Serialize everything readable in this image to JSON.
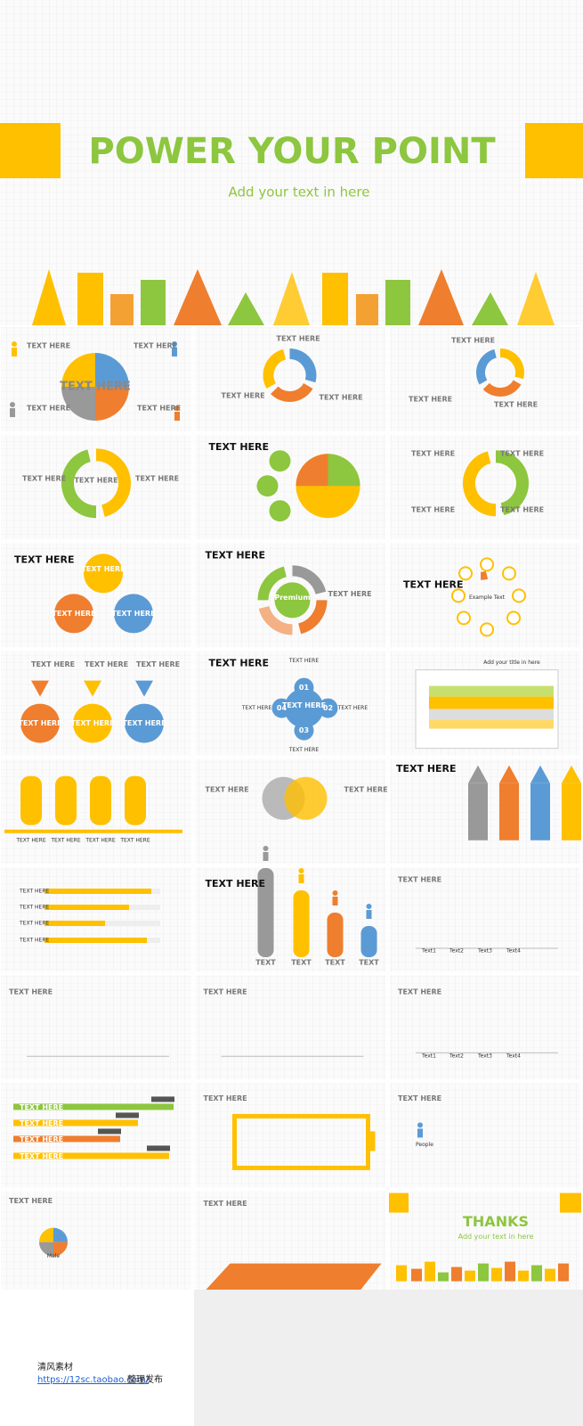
{
  "hero": {
    "title": "POWER YOUR POINT",
    "subtitle": "Add your text in here"
  },
  "slides": [
    {
      "labels": [
        "TEXT HERE",
        "TEXT HERE",
        "TEXT HERE",
        "TEXT HERE",
        "TEXT HERE"
      ]
    },
    {
      "labels": [
        "TEXT HERE",
        "TEXT HERE",
        "TEXT HERE"
      ]
    },
    {
      "labels": [
        "TEXT HERE",
        "TEXT HERE",
        "TEXT HERE"
      ]
    },
    {
      "labels": [
        "TEXT HERE",
        "TEXT HERE",
        "TEXT HERE"
      ]
    },
    {
      "labels": [
        "TEXT HERE"
      ]
    },
    {
      "labels": [
        "TEXT HERE",
        "TEXT HERE",
        "TEXT HERE",
        "TEXT HERE"
      ]
    },
    {
      "labels": [
        "TEXT HERE",
        "TEXT HERE",
        "TEXT HERE",
        "TEXT HERE"
      ]
    },
    {
      "labels": [
        "TEXT HERE",
        "Premium",
        "TEXT HERE"
      ]
    },
    {
      "labels": [
        "TEXT HERE",
        "Example Text"
      ]
    },
    {
      "labels": [
        "TEXT HERE",
        "TEXT HERE",
        "TEXT HERE",
        "TEXT HERE",
        "TEXT HERE",
        "TEXT HERE"
      ]
    },
    {
      "labels": [
        "TEXT HERE",
        "TEXT HERE",
        "TEXT HERE",
        "TEXT HERE",
        "TEXT HERE",
        "TEXT HERE",
        "01",
        "02",
        "03",
        "04"
      ]
    },
    {
      "labels": [
        "Add your title in here"
      ]
    },
    {
      "labels": [
        "TEXT HERE",
        "TEXT HERE",
        "TEXT HERE",
        "TEXT HERE"
      ]
    },
    {
      "labels": [
        "TEXT HERE",
        "TEXT HERE"
      ]
    },
    {
      "labels": [
        "TEXT HERE"
      ]
    },
    {
      "labels": [
        "TEXT HERE",
        "TEXT HERE",
        "TEXT HERE",
        "TEXT HERE"
      ]
    },
    {
      "labels": [
        "TEXT HERE",
        "TEXT",
        "TEXT",
        "TEXT",
        "TEXT"
      ]
    },
    {
      "labels": [
        "TEXT HERE",
        "Text1",
        "Text2",
        "Text3",
        "Text4"
      ]
    },
    {
      "labels": [
        "TEXT HERE"
      ]
    },
    {
      "labels": [
        "TEXT HERE"
      ]
    },
    {
      "labels": [
        "TEXT HERE",
        "Text1",
        "Text2",
        "Text3",
        "Text4"
      ]
    },
    {
      "labels": [
        "TEXT HERE",
        "TEXT HERE",
        "TEXT HERE",
        "TEXT HERE"
      ]
    },
    {
      "labels": [
        "TEXT HERE"
      ]
    },
    {
      "labels": [
        "TEXT HERE",
        "People"
      ]
    },
    {
      "labels": [
        "TEXT HERE",
        "Male"
      ]
    },
    {
      "labels": [
        "TEXT HERE"
      ]
    },
    {
      "labels": [
        "THANKS",
        "Add your text in here"
      ]
    }
  ],
  "footer": {
    "source": "清风素材",
    "url": "https://12sc.taobao.com/",
    "suffix": "整理发布"
  }
}
